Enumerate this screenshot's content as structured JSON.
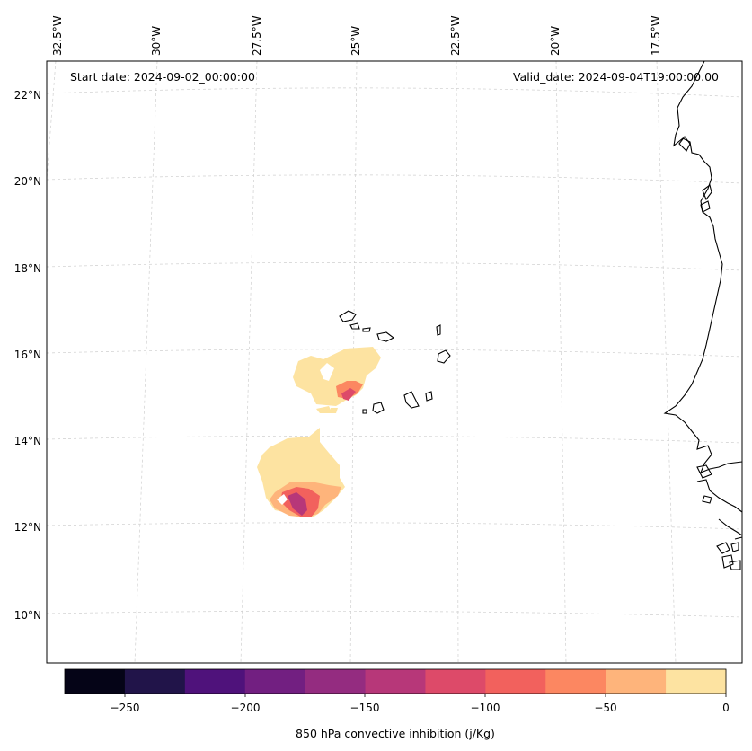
{
  "map": {
    "start_label": "Start date: 2024-09-02_00:00:00",
    "valid_label": "Valid_date: 2024-09-04T19:00:00.00",
    "lon_labels": [
      "32.5°W",
      "30°W",
      "27.5°W",
      "25°W",
      "22.5°W",
      "20°W",
      "17.5°W"
    ],
    "lat_labels": [
      "22°N",
      "20°N",
      "18°N",
      "16°N",
      "14°N",
      "12°N",
      "10°N"
    ]
  },
  "colorbar": {
    "title": "850 hPa convective inhibition (j/Kg)",
    "tick_labels": [
      "−250",
      "−200",
      "−150",
      "−100",
      "−50",
      "0"
    ],
    "colors": [
      "#050417",
      "#211449",
      "#4f127b",
      "#721f81",
      "#942c80",
      "#b73779",
      "#dd4a69",
      "#f2615d",
      "#fc8761",
      "#feb47b",
      "#fde3a1"
    ]
  }
}
